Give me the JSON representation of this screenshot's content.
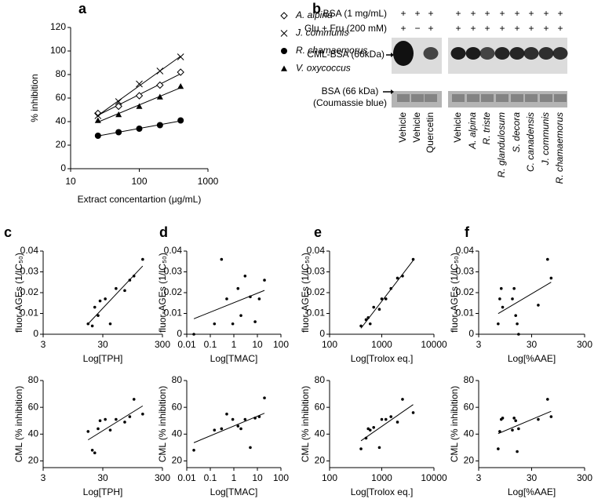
{
  "chart_data": [
    {
      "type": "line",
      "panel": "a",
      "xlabel": "Extract concentartion (μg/mL)",
      "ylabel": "% inhibition",
      "x": [
        25,
        50,
        100,
        200,
        400
      ],
      "log_x": true,
      "xlim": [
        10,
        1000
      ],
      "xticks": [
        10,
        100,
        1000
      ],
      "ylim": [
        0,
        120
      ],
      "yticks": [
        0,
        20,
        40,
        60,
        80,
        100,
        120
      ],
      "fit_line": true,
      "series": [
        {
          "name": "A. alpina",
          "marker": "diamond",
          "color": "#000000",
          "values": [
            47,
            53,
            62,
            71,
            82
          ]
        },
        {
          "name": "J. communis",
          "marker": "x",
          "color": "#000000",
          "values": [
            45,
            57,
            72,
            83,
            95
          ]
        },
        {
          "name": "R. chamaemorus",
          "marker": "circle",
          "color": "#000000",
          "values": [
            28,
            31,
            34,
            37,
            41
          ]
        },
        {
          "name": "V. oxycoccus",
          "marker": "triangle",
          "color": "#000000",
          "values": [
            41,
            46,
            53,
            61,
            70
          ]
        }
      ]
    },
    {
      "type": "scatter",
      "panel": "c",
      "xlabel": "Log[TPH]",
      "ylabel": "fluor-AGEs (1/IC₅₀)",
      "log_x": true,
      "fit_line": true,
      "color": "#000000",
      "x": [
        17,
        20,
        22,
        25,
        27,
        33,
        40,
        50,
        70,
        85,
        100,
        140
      ],
      "values": [
        0.005,
        0.004,
        0.013,
        0.009,
        0.016,
        0.017,
        0.005,
        0.022,
        0.021,
        0.026,
        0.028,
        0.036
      ],
      "xlim": [
        3,
        300
      ],
      "xticks": [
        3,
        30,
        300
      ],
      "ylim": [
        0,
        0.04
      ],
      "yticks": [
        0,
        0.01,
        0.02,
        0.03,
        0.04
      ]
    },
    {
      "type": "scatter",
      "xlabel": "Log[TPH]",
      "ylabel": "CML (% inhibition)",
      "log_x": true,
      "fit_line": true,
      "color": "#000000",
      "x": [
        17,
        20,
        22,
        25,
        27,
        33,
        40,
        50,
        70,
        85,
        100,
        140
      ],
      "values": [
        42,
        28,
        26,
        44,
        50,
        51,
        43,
        51,
        49,
        53,
        66,
        55
      ],
      "xlim": [
        3,
        300
      ],
      "xticks": [
        3,
        30,
        300
      ],
      "ylim": [
        15,
        80
      ],
      "yticks": [
        20,
        40,
        60,
        80
      ]
    },
    {
      "type": "scatter",
      "panel": "d",
      "xlabel": "Log[TMAC]",
      "ylabel": "fluor-AGEs (1/IC₅₀)",
      "log_x": true,
      "fit_line": true,
      "color": "#000000",
      "x": [
        0.02,
        0.15,
        0.3,
        0.5,
        0.9,
        1.5,
        2,
        3,
        5,
        8,
        12,
        20
      ],
      "values": [
        0,
        0.005,
        0.036,
        0.017,
        0.005,
        0.022,
        0.009,
        0.028,
        0.018,
        0.006,
        0.017,
        0.026
      ],
      "xlim": [
        0.01,
        100
      ],
      "xticks": [
        0.01,
        0.1,
        1,
        10,
        100
      ],
      "ylim": [
        0,
        0.04
      ],
      "yticks": [
        0,
        0.01,
        0.02,
        0.03,
        0.04
      ]
    },
    {
      "type": "scatter",
      "xlabel": "Log[TMAC]",
      "ylabel": "CML (% inhibition)",
      "log_x": true,
      "fit_line": true,
      "color": "#000000",
      "x": [
        0.02,
        0.15,
        0.3,
        0.5,
        0.9,
        1.5,
        2,
        3,
        5,
        8,
        12,
        20
      ],
      "values": [
        28,
        43,
        44,
        55,
        51,
        46,
        44,
        51,
        30,
        52,
        53,
        67
      ],
      "xlim": [
        0.01,
        100
      ],
      "xticks": [
        0.01,
        0.1,
        1,
        10,
        100
      ],
      "ylim": [
        15,
        80
      ],
      "yticks": [
        20,
        40,
        60,
        80
      ]
    },
    {
      "type": "scatter",
      "panel": "e",
      "xlabel": "Log[Trolox eq.]",
      "ylabel": "fluor-AGEs (1/IC₅₀)",
      "log_x": true,
      "fit_line": true,
      "color": "#000000",
      "x": [
        400,
        500,
        550,
        600,
        700,
        900,
        1000,
        1200,
        1500,
        2000,
        2500,
        4000
      ],
      "values": [
        0.004,
        0.007,
        0.008,
        0.005,
        0.013,
        0.012,
        0.017,
        0.017,
        0.022,
        0.027,
        0.028,
        0.036
      ],
      "xlim": [
        100,
        10000
      ],
      "xticks": [
        100,
        1000,
        10000
      ],
      "ylim": [
        0,
        0.04
      ],
      "yticks": [
        0,
        0.01,
        0.02,
        0.03,
        0.04
      ]
    },
    {
      "type": "scatter",
      "xlabel": "Log[Trolox eq.]",
      "ylabel": "CML (% inhibition)",
      "log_x": true,
      "fit_line": true,
      "color": "#000000",
      "x": [
        400,
        500,
        550,
        600,
        700,
        900,
        1000,
        1200,
        1500,
        2000,
        2500,
        4000
      ],
      "values": [
        29,
        37,
        44,
        43,
        45,
        30,
        51,
        51,
        53,
        49,
        66,
        56
      ],
      "xlim": [
        100,
        10000
      ],
      "xticks": [
        100,
        1000,
        10000
      ],
      "ylim": [
        15,
        80
      ],
      "yticks": [
        20,
        40,
        60,
        80
      ]
    },
    {
      "type": "scatter",
      "panel": "f",
      "xlabel": "Log[%AAE]",
      "ylabel": "fluor-AGEs (1/IC₅₀)",
      "log_x": true,
      "fit_line": true,
      "color": "#000000",
      "x": [
        7,
        7.5,
        8,
        8.5,
        13,
        14,
        15,
        16,
        17,
        40,
        60,
        70
      ],
      "values": [
        0.005,
        0.017,
        0.022,
        0.013,
        0.017,
        0.022,
        0.009,
        0.005,
        0,
        0.014,
        0.036,
        0.027
      ],
      "xlim": [
        3,
        300
      ],
      "xticks": [
        3,
        30,
        300
      ],
      "ylim": [
        0,
        0.04
      ],
      "yticks": [
        0,
        0.01,
        0.02,
        0.03,
        0.04
      ]
    },
    {
      "type": "scatter",
      "xlabel": "Log[%AAE]",
      "ylabel": "CML (% inhibition)",
      "log_x": true,
      "fit_line": true,
      "color": "#000000",
      "x": [
        7,
        7.5,
        8,
        8.5,
        13,
        14,
        15,
        16,
        17,
        40,
        60,
        70
      ],
      "values": [
        29,
        42,
        51,
        52,
        43,
        52,
        50,
        27,
        44,
        51,
        66,
        53
      ],
      "xlim": [
        3,
        300
      ],
      "xticks": [
        3,
        30,
        300
      ],
      "ylim": [
        15,
        80
      ],
      "yticks": [
        20,
        40,
        60,
        80
      ]
    }
  ],
  "blot": {
    "panel": "b",
    "row_labels": [
      "BSA (1 mg/mL)",
      "Glu + Fru (200 mM)"
    ],
    "signs": [
      [
        "+",
        "+",
        "+",
        "+",
        "+",
        "+",
        "+",
        "+",
        "+",
        "+",
        "+"
      ],
      [
        "+",
        "−",
        "+",
        "+",
        "+",
        "+",
        "+",
        "+",
        "+",
        "+",
        "+"
      ]
    ],
    "band_labels": [
      "CML-BSA (66kDa)",
      "BSA (66 kDa)",
      "(Coumassie blue)"
    ],
    "lanes": [
      "Vehicle",
      "Vehicle",
      "Quercetin",
      "Vehicle",
      "A. alpina",
      "R. triste",
      "R. glandulosum",
      "S. decora",
      "C. canadensis",
      "J. communis",
      "R. chamaemorus"
    ]
  }
}
